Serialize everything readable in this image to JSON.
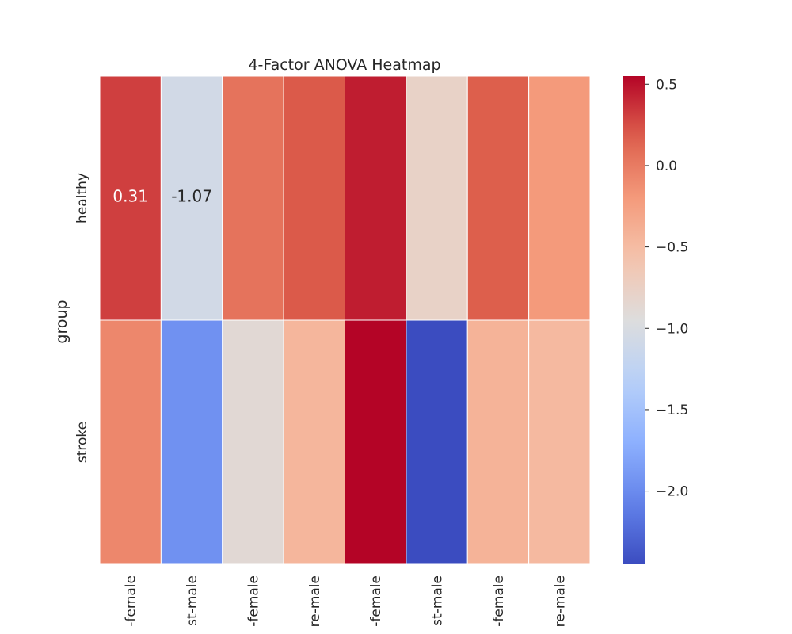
{
  "chart_data": {
    "type": "heatmap",
    "title": "4-Factor ANOVA Heatmap",
    "ylabel": "group",
    "xlabel": "",
    "rows": [
      "healthy",
      "stroke"
    ],
    "columns": [
      "-female",
      "st-male",
      "-female",
      "re-male",
      "-female",
      "st-male",
      "-female",
      "re-male"
    ],
    "values": [
      [
        0.31,
        -1.07,
        0.05,
        0.2,
        0.45,
        -0.78,
        0.18,
        -0.2
      ],
      [
        -0.08,
        -1.95,
        -0.88,
        -0.45,
        0.55,
        -2.45,
        -0.42,
        -0.48
      ]
    ],
    "annotations": [
      {
        "row": 0,
        "col": 0,
        "text": "0.31"
      },
      {
        "row": 0,
        "col": 1,
        "text": "-1.07"
      }
    ],
    "colormap": "coolwarm",
    "vmin": -2.45,
    "vmax": 0.55,
    "colorbar": {
      "ticks": [
        0.5,
        0.0,
        -0.5,
        -1.0,
        -1.5,
        -2.0
      ],
      "tick_labels": [
        "0.5",
        "0.0",
        "−0.5",
        "−1.0",
        "−1.5",
        "−2.0"
      ]
    }
  }
}
